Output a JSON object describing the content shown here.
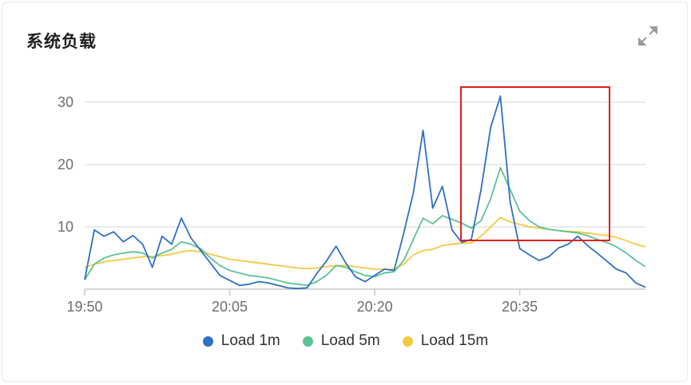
{
  "card": {
    "title": "系统负载"
  },
  "icons": {
    "expand": "expand-arrows-icon"
  },
  "colors": {
    "load_1m": "#2f6fc6",
    "load_5m": "#5cc393",
    "load_15m": "#f5c842",
    "grid": "#e3e3e3",
    "axis": "#c8c8c8",
    "highlight": "#e0201b"
  },
  "chart_data": {
    "type": "line",
    "x_range": [
      "19:50",
      "20:48"
    ],
    "x_ticks": [
      "19:50",
      "20:05",
      "20:20",
      "20:35"
    ],
    "y_ticks": [
      10,
      20,
      30
    ],
    "ylim": [
      0,
      32
    ],
    "grid": true,
    "legend_position": "bottom",
    "x": [
      "19:50",
      "19:51",
      "19:52",
      "19:53",
      "19:54",
      "19:55",
      "19:56",
      "19:57",
      "19:58",
      "19:59",
      "20:00",
      "20:01",
      "20:02",
      "20:03",
      "20:04",
      "20:05",
      "20:06",
      "20:07",
      "20:08",
      "20:09",
      "20:10",
      "20:11",
      "20:12",
      "20:13",
      "20:14",
      "20:15",
      "20:16",
      "20:17",
      "20:18",
      "20:19",
      "20:20",
      "20:21",
      "20:22",
      "20:23",
      "20:24",
      "20:25",
      "20:26",
      "20:27",
      "20:28",
      "20:29",
      "20:30",
      "20:31",
      "20:32",
      "20:33",
      "20:34",
      "20:35",
      "20:36",
      "20:37",
      "20:38",
      "20:39",
      "20:40",
      "20:41",
      "20:42",
      "20:43",
      "20:44",
      "20:45",
      "20:46",
      "20:47",
      "20:48"
    ],
    "series": [
      {
        "name": "Load 1m",
        "color_key": "load_1m",
        "values": [
          1.5,
          9.5,
          8.5,
          9.2,
          7.6,
          8.6,
          7.2,
          3.5,
          8.5,
          7.2,
          11.4,
          8.2,
          6.2,
          4.2,
          2.2,
          1.4,
          0.6,
          0.8,
          1.2,
          1.0,
          0.6,
          0.2,
          0.1,
          0.2,
          2.5,
          4.5,
          6.9,
          4.2,
          2.0,
          1.2,
          2.2,
          3.2,
          3.0,
          9.0,
          15.5,
          25.5,
          13.0,
          16.5,
          9.5,
          7.5,
          8.0,
          16.0,
          26.0,
          31.0,
          14.0,
          6.5,
          5.5,
          4.6,
          5.2,
          6.6,
          7.2,
          8.5,
          7.0,
          5.8,
          4.5,
          3.2,
          2.6,
          1.0,
          0.3
        ]
      },
      {
        "name": "Load 5m",
        "color_key": "load_5m",
        "values": [
          1.5,
          4.0,
          5.0,
          5.5,
          5.8,
          6.0,
          5.8,
          5.0,
          5.8,
          6.4,
          7.6,
          7.2,
          6.5,
          5.0,
          3.8,
          3.0,
          2.6,
          2.2,
          2.0,
          1.8,
          1.4,
          1.0,
          0.8,
          0.6,
          1.2,
          2.2,
          3.8,
          3.5,
          2.8,
          2.2,
          2.0,
          2.6,
          2.8,
          4.6,
          8.0,
          11.4,
          10.5,
          11.8,
          11.2,
          10.6,
          9.8,
          11.0,
          14.5,
          19.5,
          16.0,
          12.5,
          11.0,
          10.0,
          9.6,
          9.4,
          9.2,
          9.0,
          8.6,
          8.0,
          7.5,
          6.8,
          5.8,
          4.6,
          3.6
        ]
      },
      {
        "name": "Load 15m",
        "color_key": "load_15m",
        "values": [
          3.5,
          4.0,
          4.4,
          4.6,
          4.8,
          5.0,
          5.2,
          5.2,
          5.4,
          5.6,
          6.0,
          6.2,
          6.0,
          5.6,
          5.2,
          4.8,
          4.6,
          4.4,
          4.2,
          4.0,
          3.8,
          3.6,
          3.4,
          3.3,
          3.4,
          3.6,
          3.8,
          3.8,
          3.6,
          3.4,
          3.2,
          3.2,
          3.2,
          4.0,
          5.5,
          6.2,
          6.4,
          7.0,
          7.2,
          7.4,
          7.4,
          8.5,
          10.0,
          11.5,
          10.8,
          10.4,
          10.0,
          9.8,
          9.6,
          9.4,
          9.3,
          9.2,
          9.0,
          8.8,
          8.6,
          8.3,
          7.8,
          7.2,
          6.8
        ]
      }
    ]
  }
}
